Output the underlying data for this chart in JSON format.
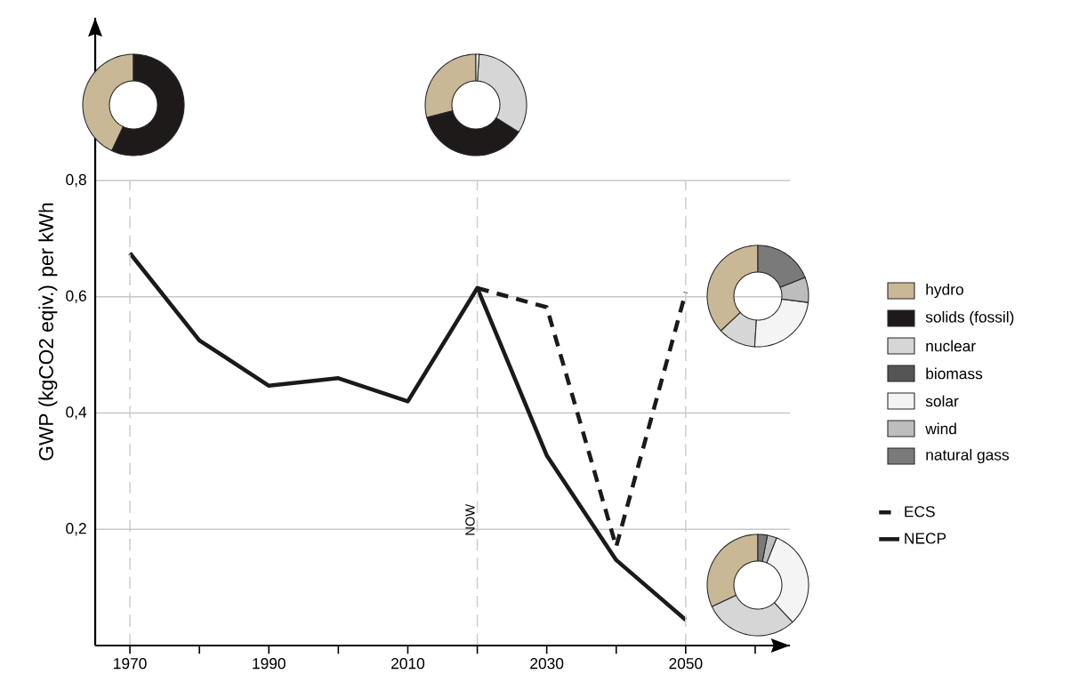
{
  "chart_data": [
    {
      "type": "line",
      "ylabel": "GWP (kgCO2 eqiv.) per kWh",
      "x": [
        1970,
        1980,
        1990,
        2000,
        2010,
        2020,
        2030,
        2040,
        2050
      ],
      "series": [
        {
          "name": "ECS",
          "color": "#1a1a1a",
          "line_style": "dashed",
          "x": [
            2020,
            2030,
            2040,
            2050
          ],
          "values": [
            0.615,
            0.582,
            0.17,
            0.608
          ]
        },
        {
          "name": "NECP",
          "color": "#1a1a1a",
          "line_style": "solid",
          "values": [
            0.675,
            0.525,
            0.447,
            0.46,
            0.42,
            0.615,
            0.327,
            0.147,
            0.044
          ]
        }
      ],
      "xlim": [
        1965,
        2065
      ],
      "ylim": [
        0,
        1.08
      ],
      "xticks": [
        1970,
        {
          "value": 1980,
          "label": null
        },
        1990,
        {
          "value": 2000,
          "label": null
        },
        2010,
        {
          "value": 2020,
          "label": null
        },
        2030,
        {
          "value": 2040,
          "label": null
        },
        2050,
        {
          "value": 2060,
          "label": null
        }
      ],
      "yticks": [
        {
          "value": 0.2,
          "label": "0,2"
        },
        {
          "value": 0.4,
          "label": "0,4"
        },
        {
          "value": 0.6,
          "label": "0,6"
        },
        {
          "value": 0.8,
          "label": "0,8"
        }
      ],
      "ref_lines": [
        {
          "axis": "x",
          "value": 1970,
          "color": "#cccccc",
          "line_style": "dashed"
        },
        {
          "axis": "x",
          "value": 2020,
          "label": "NOW",
          "color": "#cccccc",
          "line_style": "dashed"
        },
        {
          "axis": "x",
          "value": 2050,
          "color": "#cccccc",
          "line_style": "dashed"
        }
      ],
      "grid": "y",
      "legend": "right",
      "marker": "none"
    },
    {
      "type": "donut",
      "categories": [
        "hydro",
        "solids (fossil)",
        "nuclear",
        "biomass",
        "solar",
        "wind",
        "natural gass"
      ],
      "values": [
        43,
        57,
        0,
        0,
        0,
        0,
        0
      ],
      "colors": [
        "#c8b896",
        "#1e1a1a",
        "#d6d6d6",
        "#555555",
        "#f4f4f4",
        "#bdbdbd",
        "#7a7a7a"
      ],
      "legend": "right"
    },
    {
      "type": "donut",
      "categories": [
        null,
        null,
        null,
        null,
        null,
        null,
        null
      ],
      "values": [
        29,
        37,
        33,
        0,
        1,
        0,
        0
      ],
      "colors": [
        "#c8b896",
        "#1e1a1a",
        "#d6d6d6",
        "#555555",
        "#f4f4f4",
        "#bdbdbd",
        "#7a7a7a"
      ]
    },
    {
      "type": "donut",
      "categories": [
        null,
        null,
        null,
        null,
        null,
        null,
        null
      ],
      "values": [
        37,
        0,
        12,
        0,
        24,
        8,
        19
      ],
      "colors": [
        "#c8b896",
        "#1e1a1a",
        "#d6d6d6",
        "#555555",
        "#f4f4f4",
        "#bdbdbd",
        "#7a7a7a"
      ]
    },
    {
      "type": "donut",
      "categories": [
        null,
        null,
        null,
        null,
        null,
        null,
        null
      ],
      "values": [
        32,
        0,
        30,
        0,
        32,
        3,
        3
      ],
      "colors": [
        "#c8b896",
        "#1e1a1a",
        "#d6d6d6",
        "#555555",
        "#f4f4f4",
        "#bdbdbd",
        "#7a7a7a"
      ]
    }
  ]
}
